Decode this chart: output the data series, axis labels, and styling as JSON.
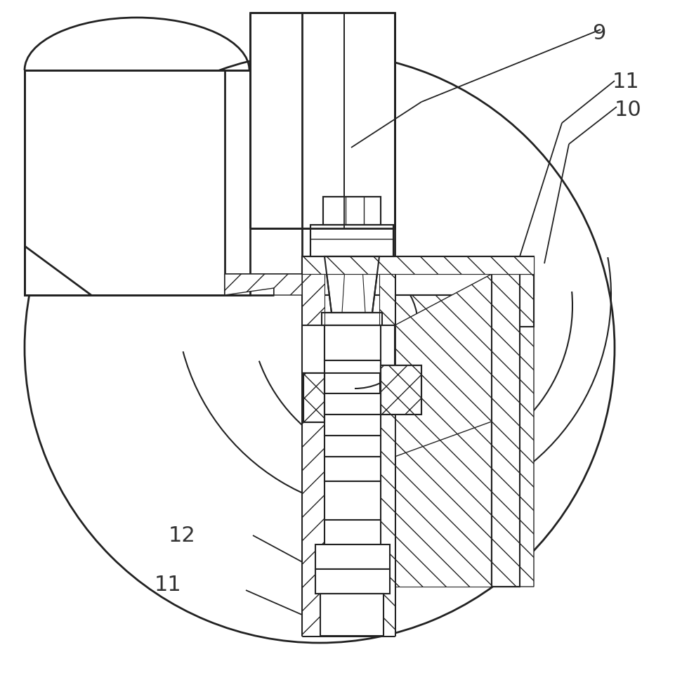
{
  "bg_color": "#ffffff",
  "line_color": "#222222",
  "label_color": "#333333",
  "figsize": [
    9.62,
    9.75
  ],
  "dpi": 100
}
